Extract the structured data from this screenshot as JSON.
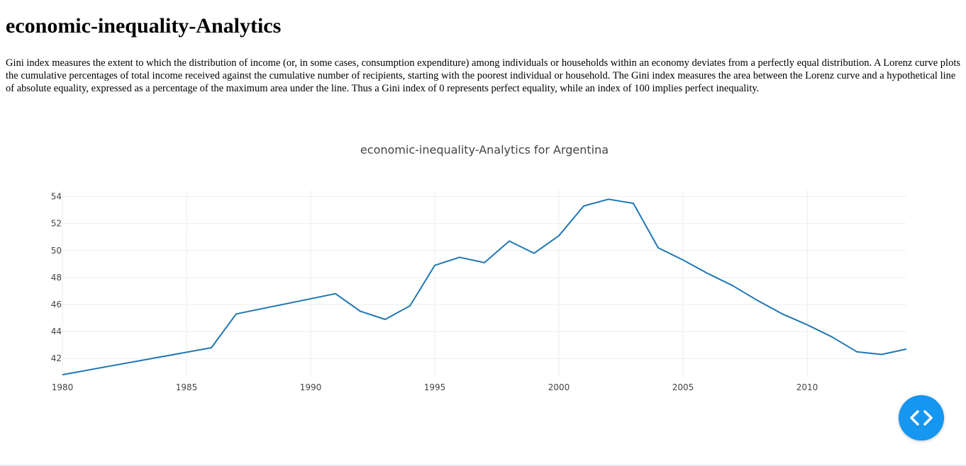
{
  "page": {
    "title": "economic-inequality-Analytics",
    "description": "Gini index measures the extent to which the distribution of income (or, in some cases, consumption expenditure) among individuals or households within an economy deviates from a perfectly equal distribution. A Lorenz curve plots the cumulative percentages of total income received against the cumulative number of recipients, starting with the poorest individual or household. The Gini index measures the area between the Lorenz curve and a hypothetical line of absolute equality, expressed as a percentage of the maximum area under the line. Thus a Gini index of 0 represents perfect equality, while an index of 100 implies perfect inequality."
  },
  "fab": {
    "icon": "code-brackets-icon"
  },
  "colors": {
    "line": "#1f77b4",
    "grid": "#eeeeee",
    "fab": "#1596f0"
  },
  "chart_data": {
    "type": "line",
    "title": "economic-inequality-Analytics for Argentina",
    "xlabel": "",
    "ylabel": "",
    "xlim": [
      1980,
      2014
    ],
    "ylim": [
      40.7,
      54.5
    ],
    "xticks": [
      1980,
      1985,
      1990,
      1995,
      2000,
      2005,
      2010
    ],
    "yticks": [
      42,
      44,
      46,
      48,
      50,
      52,
      54
    ],
    "grid": true,
    "series": [
      {
        "x": [
          1980,
          1986,
          1987,
          1991,
          1992,
          1993,
          1994,
          1995,
          1996,
          1997,
          1998,
          1999,
          2000,
          2001,
          2002,
          2003,
          2004,
          2005,
          2006,
          2007,
          2008,
          2009,
          2010,
          2011,
          2012,
          2013,
          2014
        ],
        "y": [
          40.8,
          42.8,
          45.3,
          46.8,
          45.5,
          44.9,
          45.9,
          48.9,
          49.5,
          49.1,
          50.7,
          49.8,
          51.1,
          53.3,
          53.8,
          53.5,
          50.2,
          49.3,
          48.3,
          47.4,
          46.3,
          45.3,
          44.5,
          43.6,
          42.5,
          42.3,
          42.7
        ]
      }
    ]
  }
}
